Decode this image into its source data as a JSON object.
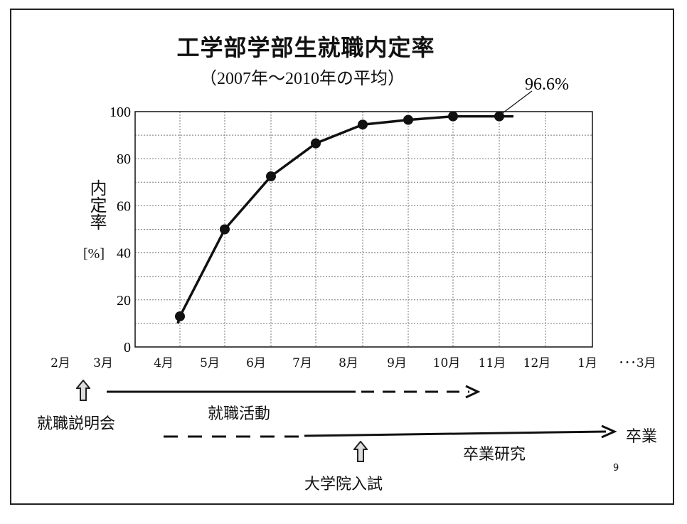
{
  "chart_data": {
    "type": "line",
    "title": "工学部学部生就職内定率",
    "subtitle": "（2007年～2010年の平均）",
    "ylabel": "内定率",
    "ylabel_unit": "[%]",
    "ylim": [
      0,
      100
    ],
    "yticks": [
      "0",
      "20",
      "40",
      "60",
      "80",
      "100"
    ],
    "months": [
      "2月",
      "3月",
      "4月",
      "5月",
      "6月",
      "7月",
      "8月",
      "9月",
      "10月",
      "11月",
      "12月",
      "1月",
      "･･･3月"
    ],
    "grid": true,
    "series": [
      {
        "x": [
          "4月",
          "5月",
          "6月",
          "7月",
          "8月",
          "9月",
          "10月",
          "11月"
        ],
        "values": [
          13,
          50,
          72.5,
          86.5,
          94.5,
          96.5,
          98,
          98
        ]
      }
    ],
    "annotation": "96.6%"
  },
  "annotations": {
    "briefing": "就職説明会",
    "job_hunting": "就職活動",
    "grad_exam": "大学院入試",
    "thesis": "卒業研究",
    "graduation": "卒業"
  },
  "page_number": "9"
}
